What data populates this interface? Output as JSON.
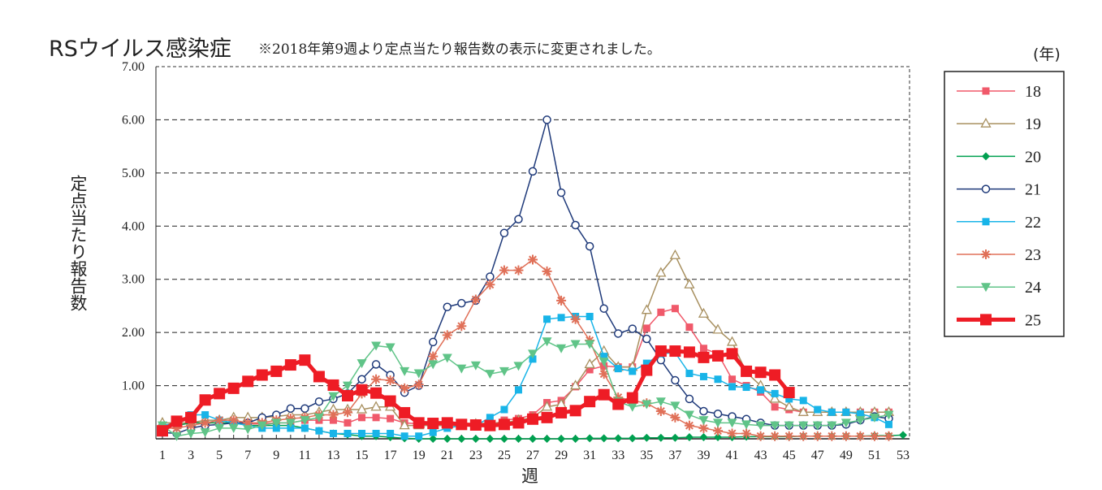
{
  "chart_data": {
    "type": "line",
    "title": "RSウイルス感染症",
    "subtitle": "※2018年第9週より定点当たり報告数の表示に変更されました。",
    "xlabel": "週",
    "ylabel": "定点当たり報告数",
    "legend_title": "(年)",
    "legend_position": "right",
    "grid": "horizontal dashed",
    "xlim": [
      1,
      53
    ],
    "ylim": [
      0,
      7
    ],
    "x_ticks": [
      "1",
      "3",
      "5",
      "7",
      "9",
      "11",
      "13",
      "15",
      "17",
      "19",
      "21",
      "23",
      "25",
      "27",
      "29",
      "31",
      "33",
      "35",
      "37",
      "39",
      "41",
      "43",
      "45",
      "47",
      "49",
      "51",
      "53"
    ],
    "y_ticks": [
      "1.00",
      "2.00",
      "3.00",
      "4.00",
      "5.00",
      "6.00",
      "7.00"
    ],
    "series": [
      {
        "name": "18",
        "color": "#f0596a",
        "marker": "square",
        "values": [
          0.2,
          0.25,
          0.3,
          0.3,
          0.3,
          0.3,
          0.28,
          0.28,
          0.3,
          0.3,
          0.35,
          0.35,
          0.35,
          0.3,
          0.4,
          0.4,
          0.38,
          0.3,
          0.28,
          0.25,
          0.25,
          0.25,
          0.25,
          0.25,
          0.35,
          0.38,
          0.45,
          0.68,
          0.72,
          0.98,
          1.3,
          1.37,
          1.35,
          1.35,
          2.08,
          2.38,
          2.45,
          2.1,
          1.7,
          1.6,
          1.12,
          1.0,
          0.88,
          0.6,
          0.55,
          0.5,
          0.5,
          0.5,
          0.5,
          0.5,
          0.5,
          0.5
        ]
      },
      {
        "name": "19",
        "color": "#a89060",
        "marker": "triangle-open",
        "values": [
          0.3,
          0.3,
          0.3,
          0.35,
          0.35,
          0.4,
          0.4,
          0.4,
          0.42,
          0.45,
          0.45,
          0.5,
          0.55,
          0.55,
          0.55,
          0.6,
          0.6,
          0.25,
          0.25,
          0.25,
          0.25,
          0.25,
          0.28,
          0.3,
          0.3,
          0.35,
          0.4,
          0.6,
          0.65,
          1.0,
          1.4,
          1.65,
          1.35,
          1.35,
          2.42,
          3.12,
          3.45,
          2.9,
          2.35,
          2.05,
          1.82,
          1.25,
          1.0,
          0.75,
          0.6,
          0.5,
          0.5,
          0.5,
          0.5,
          0.5,
          0.5,
          0.5
        ]
      },
      {
        "name": "20",
        "color": "#00a050",
        "marker": "diamond",
        "values": [
          0.25,
          0.25,
          0.3,
          0.3,
          0.3,
          0.3,
          0.25,
          0.25,
          0.25,
          0.25,
          0.2,
          0.15,
          0.1,
          0.08,
          0.05,
          0.05,
          0.03,
          0.01,
          0.0,
          0.0,
          0.0,
          0.0,
          0.0,
          0.0,
          0.0,
          0.0,
          0.0,
          0.0,
          0.0,
          0.0,
          0.01,
          0.01,
          0.01,
          0.01,
          0.02,
          0.02,
          0.02,
          0.03,
          0.03,
          0.03,
          0.03,
          0.04,
          0.04,
          0.04,
          0.04,
          0.05,
          0.05,
          0.05,
          0.05,
          0.05,
          0.06,
          0.06,
          0.07
        ]
      },
      {
        "name": "21",
        "color": "#1f3a7a",
        "marker": "circle-open",
        "values": [
          0.12,
          0.1,
          0.2,
          0.25,
          0.27,
          0.3,
          0.3,
          0.4,
          0.45,
          0.57,
          0.57,
          0.7,
          0.75,
          0.85,
          1.12,
          1.4,
          1.2,
          0.87,
          1.0,
          1.82,
          2.48,
          2.55,
          2.6,
          3.05,
          3.87,
          4.13,
          5.03,
          6.0,
          4.63,
          4.02,
          3.62,
          2.45,
          1.98,
          2.07,
          1.88,
          1.48,
          1.1,
          0.75,
          0.52,
          0.47,
          0.42,
          0.37,
          0.3,
          0.25,
          0.25,
          0.25,
          0.25,
          0.25,
          0.27,
          0.35,
          0.42,
          0.38
        ]
      },
      {
        "name": "22",
        "color": "#18b4e8",
        "marker": "square",
        "values": [
          0.25,
          0.3,
          0.45,
          0.45,
          0.35,
          0.3,
          0.25,
          0.2,
          0.2,
          0.2,
          0.2,
          0.15,
          0.1,
          0.1,
          0.1,
          0.1,
          0.1,
          0.05,
          0.05,
          0.12,
          0.2,
          0.25,
          0.25,
          0.4,
          0.55,
          0.92,
          1.5,
          2.25,
          2.28,
          2.3,
          2.3,
          1.55,
          1.32,
          1.27,
          1.42,
          1.6,
          1.62,
          1.23,
          1.17,
          1.12,
          0.98,
          0.97,
          0.92,
          0.85,
          0.75,
          0.72,
          0.55,
          0.5,
          0.5,
          0.47,
          0.4,
          0.27
        ]
      },
      {
        "name": "23",
        "color": "#e07058",
        "marker": "asterisk",
        "values": [
          0.2,
          0.2,
          0.25,
          0.3,
          0.35,
          0.35,
          0.3,
          0.3,
          0.35,
          0.38,
          0.4,
          0.45,
          0.45,
          0.5,
          0.85,
          1.12,
          1.1,
          0.95,
          1.02,
          1.55,
          1.95,
          2.12,
          2.62,
          2.9,
          3.17,
          3.17,
          3.37,
          3.15,
          2.6,
          2.25,
          1.85,
          1.22,
          0.78,
          0.72,
          0.67,
          0.52,
          0.4,
          0.25,
          0.2,
          0.15,
          0.1,
          0.1,
          0.05,
          0.05,
          0.05,
          0.05,
          0.05,
          0.05,
          0.05,
          0.05,
          0.05,
          0.05
        ]
      },
      {
        "name": "24",
        "color": "#60c488",
        "marker": "triangle-down",
        "values": [
          0.25,
          0.05,
          0.1,
          0.12,
          0.2,
          0.2,
          0.18,
          0.25,
          0.3,
          0.3,
          0.35,
          0.4,
          0.8,
          1.0,
          1.42,
          1.75,
          1.72,
          1.27,
          1.23,
          1.4,
          1.52,
          1.32,
          1.38,
          1.22,
          1.27,
          1.37,
          1.6,
          1.83,
          1.7,
          1.78,
          1.78,
          1.45,
          0.7,
          0.6,
          0.65,
          0.7,
          0.62,
          0.45,
          0.35,
          0.3,
          0.3,
          0.27,
          0.25,
          0.25,
          0.25,
          0.25,
          0.25,
          0.25,
          0.3,
          0.35,
          0.4,
          0.45
        ]
      },
      {
        "name": "25",
        "color": "#ee1c25",
        "marker": "square-large",
        "values": [
          0.15,
          0.33,
          0.4,
          0.73,
          0.85,
          0.95,
          1.08,
          1.2,
          1.27,
          1.39,
          1.48,
          1.17,
          1.01,
          0.81,
          0.92,
          0.86,
          0.71,
          0.49,
          0.3,
          0.29,
          0.3,
          0.27,
          0.26,
          0.25,
          0.27,
          0.3,
          0.37,
          0.4,
          0.49,
          0.53,
          0.7,
          0.83,
          0.65,
          0.77,
          1.29,
          1.65,
          1.65,
          1.63,
          1.53,
          1.56,
          1.6,
          1.27,
          1.25,
          1.2,
          0.87
        ]
      }
    ]
  }
}
